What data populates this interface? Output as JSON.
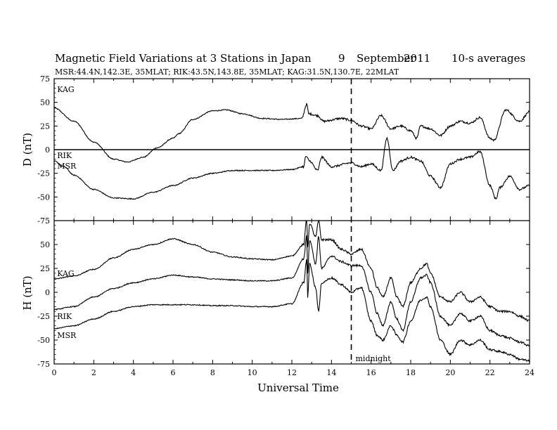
{
  "header": {
    "title": "Magnetic Field Variations at 3 Stations in Japan",
    "day": "9",
    "month": "September",
    "year": "2011",
    "averaging": "10-s averages",
    "stations": "MSR:44.4N,142.3E, 35MLAT;  RIK:43.5N,143.8E, 35MLAT;  KAG:31.5N,130.7E, 22MLAT"
  },
  "chart_data": [
    {
      "type": "line",
      "panel": "D",
      "ylabel": "D (nT)",
      "xlabel": "",
      "xlim": [
        0,
        24
      ],
      "ylim": [
        -75,
        75
      ],
      "yticks": [
        "75",
        "50",
        "25",
        "0",
        "-25",
        "-50",
        "-75"
      ],
      "zero_line": true,
      "series": [
        {
          "name": "KAG",
          "x": [
            0,
            1,
            2,
            3,
            3.7,
            4.5,
            5.2,
            6,
            6.3,
            7,
            8,
            8.7,
            9.5,
            10.5,
            11.5,
            12.5,
            12.75,
            12.85,
            13.3,
            13.6,
            14.5,
            15,
            15.5,
            16,
            16.5,
            17,
            17.5,
            18,
            18.3,
            18.5,
            19,
            19.5,
            20,
            20.5,
            21,
            21.5,
            22,
            22.2,
            22.8,
            23.5,
            24
          ],
          "y": [
            44,
            30,
            8,
            -10,
            -13,
            -8,
            2,
            12,
            17,
            32,
            41,
            42,
            38,
            33,
            32,
            33,
            48,
            38,
            36,
            30,
            33,
            31,
            25,
            22,
            36,
            22,
            25,
            20,
            12,
            25,
            22,
            15,
            25,
            30,
            28,
            34,
            12,
            10,
            42,
            30,
            40
          ]
        },
        {
          "name": "RIK",
          "x": [
            0,
            0.5,
            1,
            2,
            3,
            4,
            5,
            6,
            7,
            8,
            9,
            10,
            11,
            12,
            12.6,
            12.7,
            12.9,
            13.3,
            13.5,
            14,
            15,
            15.5,
            16,
            16.5,
            16.8,
            17.1,
            17.5,
            18,
            18.5,
            19,
            19.5,
            20,
            20.5,
            21,
            21.5,
            22,
            22.3,
            22.5,
            23,
            23.5,
            24
          ],
          "y": [
            -12,
            -18,
            -27,
            -42,
            -51,
            -52,
            -45,
            -38,
            -30,
            -25,
            -22,
            -22,
            -22,
            -21,
            -18,
            -7,
            -12,
            -22,
            -8,
            -18,
            -14,
            -18,
            -15,
            -22,
            12,
            -22,
            -12,
            -8,
            -12,
            -28,
            -40,
            -15,
            -10,
            -8,
            -2,
            -38,
            -52,
            -40,
            -28,
            -42,
            -38
          ]
        }
      ],
      "series_labels": [
        "KAG",
        "RIK",
        "MSR"
      ]
    },
    {
      "type": "line",
      "panel": "H",
      "ylabel": "H (nT)",
      "xlabel": "Universal Time",
      "xlim": [
        0,
        24
      ],
      "ylim": [
        -75,
        75
      ],
      "xticks": [
        "0",
        "2",
        "4",
        "6",
        "8",
        "10",
        "12",
        "14",
        "16",
        "18",
        "20",
        "22",
        "24"
      ],
      "yticks": [
        "75",
        "50",
        "25",
        "0",
        "-25",
        "-50",
        "-75"
      ],
      "annotations": [
        {
          "x": 15,
          "text": "midnight"
        }
      ],
      "series": [
        {
          "name": "KAG",
          "x": [
            0,
            1,
            2,
            3,
            4,
            5,
            6,
            7,
            8,
            9,
            10,
            11,
            12,
            12.6,
            12.75,
            12.8,
            12.9,
            13.2,
            13.35,
            13.5,
            14,
            14.5,
            15,
            15.5,
            16,
            16.3,
            16.6,
            17,
            17.3,
            17.6,
            18,
            18.5,
            18.8,
            19,
            19.5,
            20,
            20.5,
            21,
            21.5,
            22,
            22.5,
            23,
            23.5,
            24
          ],
          "y": [
            14,
            17,
            24,
            36,
            45,
            50,
            56,
            50,
            42,
            37,
            35,
            34,
            38,
            50,
            78,
            48,
            72,
            58,
            75,
            55,
            55,
            45,
            40,
            45,
            25,
            5,
            -5,
            15,
            -5,
            -15,
            10,
            25,
            30,
            20,
            -5,
            -10,
            0,
            -10,
            -5,
            -15,
            -20,
            -20,
            -25,
            -30
          ]
        },
        {
          "name": "RIK",
          "x": [
            0,
            1,
            2,
            3,
            4,
            5,
            6,
            7,
            8,
            9,
            10,
            11,
            12,
            12.6,
            12.75,
            12.8,
            12.9,
            13.2,
            13.35,
            13.5,
            14,
            14.5,
            15,
            15.5,
            16,
            16.3,
            16.6,
            17,
            17.3,
            17.6,
            18,
            18.5,
            18.8,
            19,
            19.5,
            20,
            20.5,
            21,
            21.5,
            22,
            22.5,
            23,
            23.5,
            24
          ],
          "y": [
            -18,
            -15,
            -5,
            4,
            10,
            14,
            18,
            16,
            14,
            13,
            12,
            12,
            15,
            35,
            60,
            20,
            55,
            30,
            58,
            25,
            38,
            32,
            28,
            28,
            0,
            -22,
            -35,
            -10,
            -28,
            -40,
            -10,
            15,
            18,
            10,
            -25,
            -35,
            -22,
            -30,
            -25,
            -40,
            -45,
            -48,
            -52,
            -56
          ]
        },
        {
          "name": "MSR",
          "x": [
            0,
            1,
            2,
            3,
            4,
            5,
            6,
            7,
            8,
            9,
            10,
            11,
            12,
            12.6,
            12.75,
            12.8,
            12.9,
            13.2,
            13.35,
            13.5,
            14,
            14.5,
            15,
            15.5,
            16,
            16.3,
            16.6,
            17,
            17.3,
            17.6,
            18,
            18.5,
            18.8,
            19,
            19.5,
            20,
            20.5,
            21,
            21.5,
            22,
            22.5,
            23,
            23.5,
            24
          ],
          "y": [
            -38,
            -35,
            -28,
            -20,
            -15,
            -13,
            -13,
            -13,
            -14,
            -14,
            -15,
            -15,
            -12,
            10,
            35,
            -5,
            30,
            5,
            -20,
            10,
            15,
            8,
            0,
            5,
            -30,
            -45,
            -50,
            -35,
            -45,
            -52,
            -30,
            -8,
            -5,
            -15,
            -50,
            -65,
            -50,
            -55,
            -50,
            -60,
            -62,
            -65,
            -70,
            -72
          ]
        }
      ],
      "series_labels": [
        "KAG",
        "RIK",
        "MSR"
      ]
    }
  ]
}
